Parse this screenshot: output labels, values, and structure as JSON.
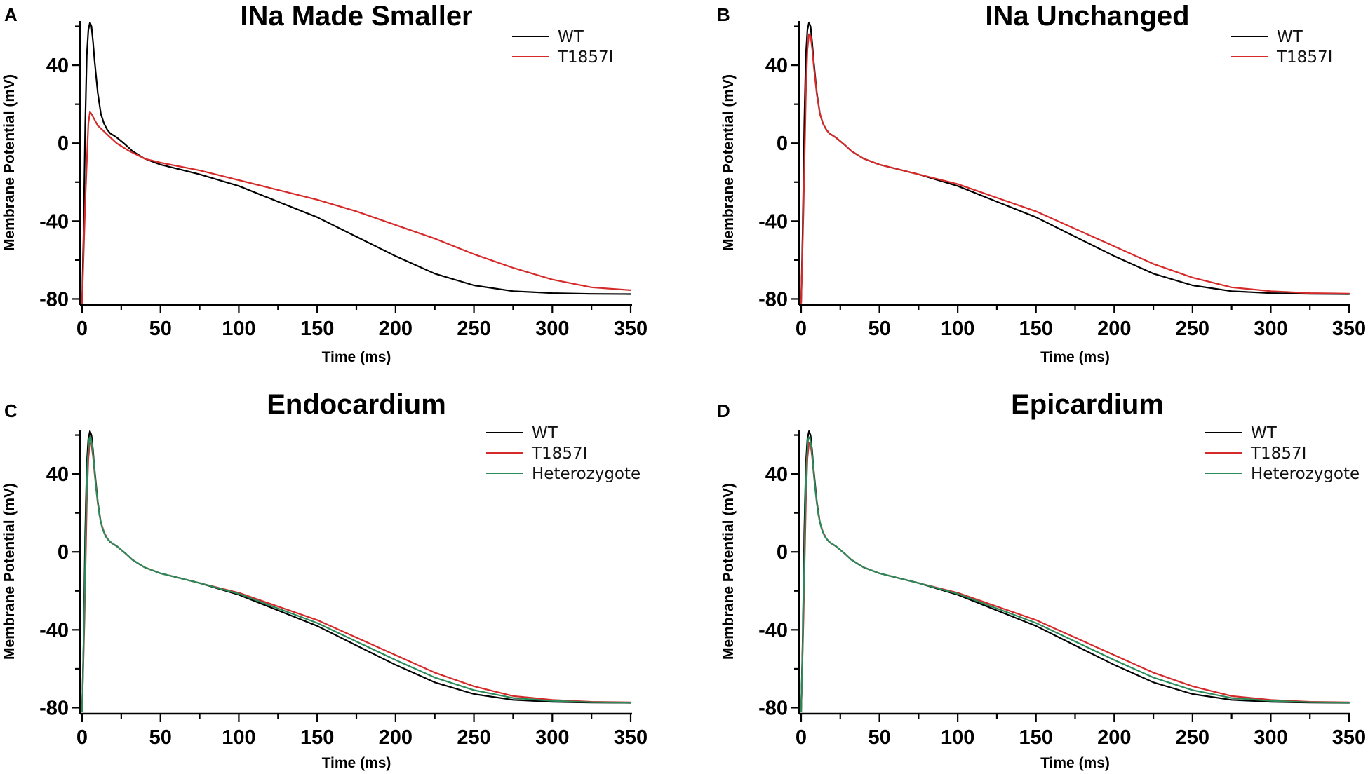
{
  "chart_data": [
    {
      "panel": "A",
      "type": "line",
      "title": "INa Made Smaller",
      "xlabel": "Time (ms)",
      "ylabel": "Membrane Potential (mV)",
      "xlim": [
        0,
        350
      ],
      "ylim": [
        -82,
        62
      ],
      "xticks": [
        0,
        50,
        100,
        150,
        200,
        250,
        300,
        350
      ],
      "yticks": [
        -80,
        -40,
        0,
        40
      ],
      "legend": "top-right",
      "series": [
        {
          "name": "WT",
          "color": "#000000",
          "x": [
            0,
            1,
            2,
            3,
            4,
            5,
            6,
            7,
            8,
            10,
            12,
            14,
            16,
            18,
            20,
            22,
            25,
            28,
            32,
            36,
            40,
            50,
            60,
            75,
            100,
            125,
            150,
            175,
            200,
            225,
            250,
            275,
            300,
            325,
            350
          ],
          "y": [
            -82,
            -45,
            10,
            45,
            58,
            62,
            60,
            52,
            42,
            26,
            15,
            10,
            7,
            5,
            4,
            3,
            1,
            -1,
            -4,
            -6,
            -8,
            -11,
            -13,
            -16,
            -22,
            -30,
            -38,
            -48,
            -58,
            -67,
            -73,
            -76,
            -77,
            -77.4,
            -77.5
          ]
        },
        {
          "name": "T1857I",
          "color": "#d62a2a",
          "x": [
            0,
            2,
            4,
            5,
            6,
            8,
            10,
            14,
            18,
            22,
            26,
            30,
            35,
            40,
            50,
            75,
            100,
            125,
            150,
            175,
            200,
            225,
            250,
            275,
            300,
            325,
            350
          ],
          "y": [
            -82,
            -30,
            10,
            16,
            15,
            12,
            9,
            6,
            3,
            0,
            -2,
            -4,
            -6,
            -8,
            -10,
            -14,
            -19,
            -24,
            -29,
            -35,
            -42,
            -49,
            -57,
            -64,
            -70,
            -74,
            -75.5
          ]
        }
      ]
    },
    {
      "panel": "B",
      "type": "line",
      "title": "INa Unchanged",
      "xlabel": "Time (ms)",
      "ylabel": "Membrane Potential (mV)",
      "xlim": [
        0,
        350
      ],
      "ylim": [
        -82,
        62
      ],
      "xticks": [
        0,
        50,
        100,
        150,
        200,
        250,
        300,
        350
      ],
      "yticks": [
        -80,
        -40,
        0,
        40
      ],
      "legend": "top-right",
      "series": [
        {
          "name": "WT",
          "color": "#000000",
          "x": [
            0,
            1,
            2,
            3,
            4,
            5,
            6,
            7,
            8,
            10,
            12,
            14,
            16,
            18,
            20,
            22,
            25,
            28,
            32,
            36,
            40,
            50,
            60,
            75,
            100,
            125,
            150,
            175,
            200,
            225,
            250,
            275,
            300,
            325,
            350
          ],
          "y": [
            -82,
            -45,
            10,
            45,
            58,
            62,
            60,
            52,
            42,
            26,
            15,
            10,
            7,
            5,
            4,
            3,
            1,
            -1,
            -4,
            -6,
            -8,
            -11,
            -13,
            -16,
            -22,
            -30,
            -38,
            -48,
            -58,
            -67,
            -73,
            -76,
            -77,
            -77.4,
            -77.5
          ]
        },
        {
          "name": "T1857I",
          "color": "#d62a2a",
          "x": [
            0,
            1.5,
            3,
            4,
            5,
            6,
            7,
            8,
            10,
            12,
            14,
            16,
            18,
            20,
            22,
            25,
            28,
            32,
            36,
            40,
            50,
            60,
            75,
            100,
            125,
            150,
            175,
            200,
            225,
            250,
            275,
            300,
            325,
            350
          ],
          "y": [
            -82,
            -35,
            25,
            48,
            56,
            55,
            49,
            40,
            25,
            15,
            10,
            7,
            5,
            4,
            3,
            1,
            -1,
            -4,
            -6,
            -8,
            -11,
            -13,
            -16,
            -21,
            -28,
            -35,
            -44,
            -53,
            -62,
            -69,
            -74,
            -76,
            -77,
            -77.3
          ]
        }
      ]
    },
    {
      "panel": "C",
      "type": "line",
      "title": "Endocardium",
      "xlabel": "Time (ms)",
      "ylabel": "Membrane Potential (mV)",
      "xlim": [
        0,
        350
      ],
      "ylim": [
        -82,
        62
      ],
      "xticks": [
        0,
        50,
        100,
        150,
        200,
        250,
        300,
        350
      ],
      "yticks": [
        -80,
        -40,
        0,
        40
      ],
      "legend": "top-right",
      "series": [
        {
          "name": "WT",
          "color": "#000000",
          "x": [
            0,
            1,
            2,
            3,
            4,
            5,
            6,
            7,
            8,
            10,
            12,
            14,
            16,
            18,
            20,
            22,
            25,
            28,
            32,
            36,
            40,
            50,
            60,
            75,
            100,
            125,
            150,
            175,
            200,
            225,
            250,
            275,
            300,
            325,
            350
          ],
          "y": [
            -82,
            -45,
            10,
            45,
            58,
            62,
            60,
            52,
            42,
            26,
            15,
            10,
            7,
            5,
            4,
            3,
            1,
            -1,
            -4,
            -6,
            -8,
            -11,
            -13,
            -16,
            -22,
            -30,
            -38,
            -48,
            -58,
            -67,
            -73,
            -76,
            -77,
            -77.4,
            -77.5
          ]
        },
        {
          "name": "T1857I",
          "color": "#d62a2a",
          "x": [
            0,
            1.5,
            3,
            4,
            5,
            6,
            7,
            8,
            10,
            12,
            14,
            16,
            18,
            20,
            22,
            25,
            28,
            32,
            36,
            40,
            50,
            60,
            75,
            100,
            125,
            150,
            175,
            200,
            225,
            250,
            275,
            300,
            325,
            350
          ],
          "y": [
            -82,
            -35,
            25,
            48,
            56,
            55,
            49,
            40,
            25,
            15,
            10,
            7,
            5,
            4,
            3,
            1,
            -1,
            -4,
            -6,
            -8,
            -11,
            -13,
            -16,
            -21,
            -28,
            -35,
            -44,
            -53,
            -62,
            -69,
            -74,
            -76,
            -77,
            -77.3
          ]
        },
        {
          "name": "Heterozygote",
          "color": "#2a8a5a",
          "x": [
            0,
            1.2,
            2.5,
            3.5,
            4.5,
            5.5,
            6.5,
            7.5,
            9,
            11,
            13,
            15,
            17,
            19,
            21,
            23,
            25,
            28,
            32,
            36,
            40,
            50,
            60,
            75,
            100,
            125,
            150,
            175,
            200,
            225,
            250,
            275,
            300,
            325,
            350
          ],
          "y": [
            -82,
            -40,
            18,
            47,
            58,
            59,
            54,
            46,
            32,
            19,
            12,
            8,
            6,
            4.5,
            3.5,
            2.5,
            1,
            -1,
            -4,
            -6,
            -8,
            -11,
            -13,
            -16,
            -21.5,
            -29,
            -36.5,
            -46,
            -55.5,
            -64.5,
            -71,
            -75,
            -76.5,
            -77.2,
            -77.4
          ]
        }
      ]
    },
    {
      "panel": "D",
      "type": "line",
      "title": "Epicardium",
      "xlabel": "Time (ms)",
      "ylabel": "Membrane Potential (mV)",
      "xlim": [
        0,
        350
      ],
      "ylim": [
        -82,
        62
      ],
      "xticks": [
        0,
        50,
        100,
        150,
        200,
        250,
        300,
        350
      ],
      "yticks": [
        -80,
        -40,
        0,
        40
      ],
      "legend": "top-right",
      "series": [
        {
          "name": "WT",
          "color": "#000000",
          "x": [
            0,
            1,
            2,
            3,
            4,
            5,
            6,
            7,
            8,
            10,
            12,
            14,
            16,
            18,
            20,
            22,
            25,
            28,
            32,
            36,
            40,
            50,
            60,
            75,
            100,
            125,
            150,
            175,
            200,
            225,
            250,
            275,
            300,
            325,
            350
          ],
          "y": [
            -82,
            -45,
            10,
            45,
            58,
            62,
            60,
            52,
            42,
            26,
            15,
            10,
            7,
            5,
            4,
            3,
            1,
            -1,
            -4,
            -6,
            -8,
            -11,
            -13,
            -16,
            -22,
            -30,
            -38,
            -48,
            -58,
            -67,
            -73,
            -76,
            -77,
            -77.4,
            -77.5
          ]
        },
        {
          "name": "T1857I",
          "color": "#d62a2a",
          "x": [
            0,
            1.5,
            3,
            4,
            5,
            6,
            7,
            8,
            10,
            12,
            14,
            16,
            18,
            20,
            22,
            25,
            28,
            32,
            36,
            40,
            50,
            60,
            75,
            100,
            125,
            150,
            175,
            200,
            225,
            250,
            275,
            300,
            325,
            350
          ],
          "y": [
            -82,
            -35,
            25,
            48,
            56,
            55,
            49,
            40,
            25,
            15,
            10,
            7,
            5,
            4,
            3,
            1,
            -1,
            -4,
            -6,
            -8,
            -11,
            -13,
            -16,
            -21,
            -28,
            -35,
            -44,
            -53,
            -62,
            -69,
            -74,
            -76,
            -77,
            -77.3
          ]
        },
        {
          "name": "Heterozygote",
          "color": "#2a8a5a",
          "x": [
            0,
            1.2,
            2.5,
            3.5,
            4.5,
            5.5,
            6.5,
            7.5,
            9,
            11,
            13,
            15,
            17,
            19,
            21,
            23,
            25,
            28,
            32,
            36,
            40,
            50,
            60,
            75,
            100,
            125,
            150,
            175,
            200,
            225,
            250,
            275,
            300,
            325,
            350
          ],
          "y": [
            -82,
            -40,
            18,
            47,
            58,
            59,
            54,
            46,
            32,
            19,
            12,
            8,
            6,
            4.5,
            3.5,
            2.5,
            1,
            -1,
            -4,
            -6,
            -8,
            -11,
            -13,
            -16,
            -21.5,
            -29,
            -36.5,
            -46,
            -55.5,
            -64.5,
            -71,
            -75,
            -76.5,
            -77.2,
            -77.4
          ]
        }
      ]
    }
  ]
}
